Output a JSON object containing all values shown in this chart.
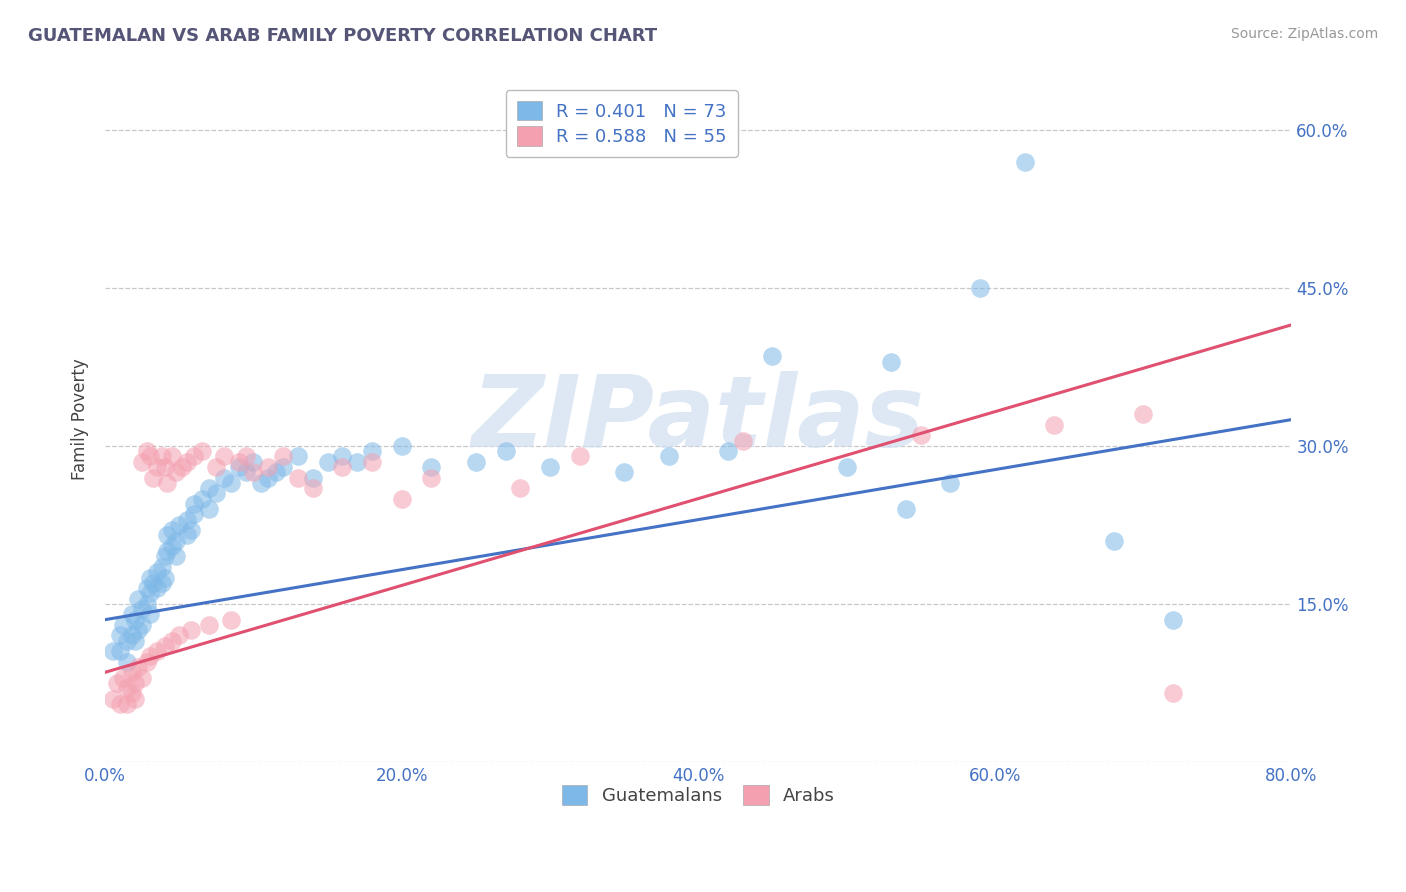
{
  "title": "GUATEMALAN VS ARAB FAMILY POVERTY CORRELATION CHART",
  "source": "Source: ZipAtlas.com",
  "ylabel": "Family Poverty",
  "xlim": [
    0.0,
    0.8
  ],
  "ylim": [
    0.0,
    0.65
  ],
  "xticks": [
    0.0,
    0.2,
    0.4,
    0.6,
    0.8
  ],
  "xticklabels": [
    "0.0%",
    "20.0%",
    "40.0%",
    "60.0%",
    "80.0%"
  ],
  "yticks": [
    0.0,
    0.15,
    0.3,
    0.45,
    0.6
  ],
  "yticklabels_right": [
    "",
    "15.0%",
    "30.0%",
    "45.0%",
    "60.0%"
  ],
  "grid_color": "#c8c8c8",
  "background_color": "#ffffff",
  "guatemalan_color": "#7eb8e8",
  "arab_color": "#f4a0b0",
  "line_guatemalan_color": "#4472c4",
  "line_arab_color": "#e05070",
  "tick_label_color": "#4472c4",
  "R_guatemalan": 0.401,
  "N_guatemalan": 73,
  "R_arab": 0.588,
  "N_arab": 55,
  "watermark": "ZIPatlas",
  "line_guat_x0": 0.0,
  "line_guat_y0": 0.135,
  "line_guat_x1": 0.8,
  "line_guat_y1": 0.325,
  "line_arab_x0": 0.0,
  "line_arab_y0": 0.085,
  "line_arab_x1": 0.8,
  "line_arab_y1": 0.415,
  "guatemalan_points": [
    [
      0.005,
      0.105
    ],
    [
      0.01,
      0.12
    ],
    [
      0.01,
      0.105
    ],
    [
      0.012,
      0.13
    ],
    [
      0.015,
      0.115
    ],
    [
      0.015,
      0.095
    ],
    [
      0.018,
      0.14
    ],
    [
      0.018,
      0.12
    ],
    [
      0.02,
      0.135
    ],
    [
      0.02,
      0.115
    ],
    [
      0.022,
      0.155
    ],
    [
      0.022,
      0.125
    ],
    [
      0.025,
      0.145
    ],
    [
      0.025,
      0.13
    ],
    [
      0.028,
      0.165
    ],
    [
      0.028,
      0.15
    ],
    [
      0.03,
      0.175
    ],
    [
      0.03,
      0.16
    ],
    [
      0.03,
      0.14
    ],
    [
      0.032,
      0.17
    ],
    [
      0.035,
      0.18
    ],
    [
      0.035,
      0.165
    ],
    [
      0.038,
      0.185
    ],
    [
      0.038,
      0.17
    ],
    [
      0.04,
      0.195
    ],
    [
      0.04,
      0.175
    ],
    [
      0.042,
      0.215
    ],
    [
      0.042,
      0.2
    ],
    [
      0.045,
      0.22
    ],
    [
      0.045,
      0.205
    ],
    [
      0.048,
      0.21
    ],
    [
      0.048,
      0.195
    ],
    [
      0.05,
      0.225
    ],
    [
      0.055,
      0.23
    ],
    [
      0.055,
      0.215
    ],
    [
      0.058,
      0.22
    ],
    [
      0.06,
      0.235
    ],
    [
      0.06,
      0.245
    ],
    [
      0.065,
      0.25
    ],
    [
      0.07,
      0.26
    ],
    [
      0.07,
      0.24
    ],
    [
      0.075,
      0.255
    ],
    [
      0.08,
      0.27
    ],
    [
      0.085,
      0.265
    ],
    [
      0.09,
      0.28
    ],
    [
      0.095,
      0.275
    ],
    [
      0.1,
      0.285
    ],
    [
      0.105,
      0.265
    ],
    [
      0.11,
      0.27
    ],
    [
      0.115,
      0.275
    ],
    [
      0.12,
      0.28
    ],
    [
      0.13,
      0.29
    ],
    [
      0.14,
      0.27
    ],
    [
      0.15,
      0.285
    ],
    [
      0.16,
      0.29
    ],
    [
      0.17,
      0.285
    ],
    [
      0.18,
      0.295
    ],
    [
      0.2,
      0.3
    ],
    [
      0.22,
      0.28
    ],
    [
      0.25,
      0.285
    ],
    [
      0.27,
      0.295
    ],
    [
      0.3,
      0.28
    ],
    [
      0.35,
      0.275
    ],
    [
      0.38,
      0.29
    ],
    [
      0.42,
      0.295
    ],
    [
      0.45,
      0.385
    ],
    [
      0.5,
      0.28
    ],
    [
      0.53,
      0.38
    ],
    [
      0.54,
      0.24
    ],
    [
      0.57,
      0.265
    ],
    [
      0.59,
      0.45
    ],
    [
      0.62,
      0.57
    ],
    [
      0.68,
      0.21
    ],
    [
      0.72,
      0.135
    ]
  ],
  "arab_points": [
    [
      0.005,
      0.06
    ],
    [
      0.008,
      0.075
    ],
    [
      0.01,
      0.055
    ],
    [
      0.012,
      0.08
    ],
    [
      0.015,
      0.07
    ],
    [
      0.015,
      0.055
    ],
    [
      0.018,
      0.085
    ],
    [
      0.018,
      0.065
    ],
    [
      0.02,
      0.075
    ],
    [
      0.02,
      0.06
    ],
    [
      0.022,
      0.09
    ],
    [
      0.025,
      0.08
    ],
    [
      0.025,
      0.285
    ],
    [
      0.028,
      0.095
    ],
    [
      0.028,
      0.295
    ],
    [
      0.03,
      0.1
    ],
    [
      0.03,
      0.29
    ],
    [
      0.032,
      0.27
    ],
    [
      0.035,
      0.28
    ],
    [
      0.035,
      0.105
    ],
    [
      0.038,
      0.29
    ],
    [
      0.04,
      0.11
    ],
    [
      0.04,
      0.28
    ],
    [
      0.042,
      0.265
    ],
    [
      0.045,
      0.29
    ],
    [
      0.045,
      0.115
    ],
    [
      0.048,
      0.275
    ],
    [
      0.05,
      0.12
    ],
    [
      0.052,
      0.28
    ],
    [
      0.055,
      0.285
    ],
    [
      0.058,
      0.125
    ],
    [
      0.06,
      0.29
    ],
    [
      0.065,
      0.295
    ],
    [
      0.07,
      0.13
    ],
    [
      0.075,
      0.28
    ],
    [
      0.08,
      0.29
    ],
    [
      0.085,
      0.135
    ],
    [
      0.09,
      0.285
    ],
    [
      0.095,
      0.29
    ],
    [
      0.1,
      0.275
    ],
    [
      0.11,
      0.28
    ],
    [
      0.12,
      0.29
    ],
    [
      0.13,
      0.27
    ],
    [
      0.14,
      0.26
    ],
    [
      0.16,
      0.28
    ],
    [
      0.18,
      0.285
    ],
    [
      0.2,
      0.25
    ],
    [
      0.22,
      0.27
    ],
    [
      0.28,
      0.26
    ],
    [
      0.32,
      0.29
    ],
    [
      0.43,
      0.305
    ],
    [
      0.55,
      0.31
    ],
    [
      0.64,
      0.32
    ],
    [
      0.7,
      0.33
    ],
    [
      0.72,
      0.065
    ]
  ]
}
